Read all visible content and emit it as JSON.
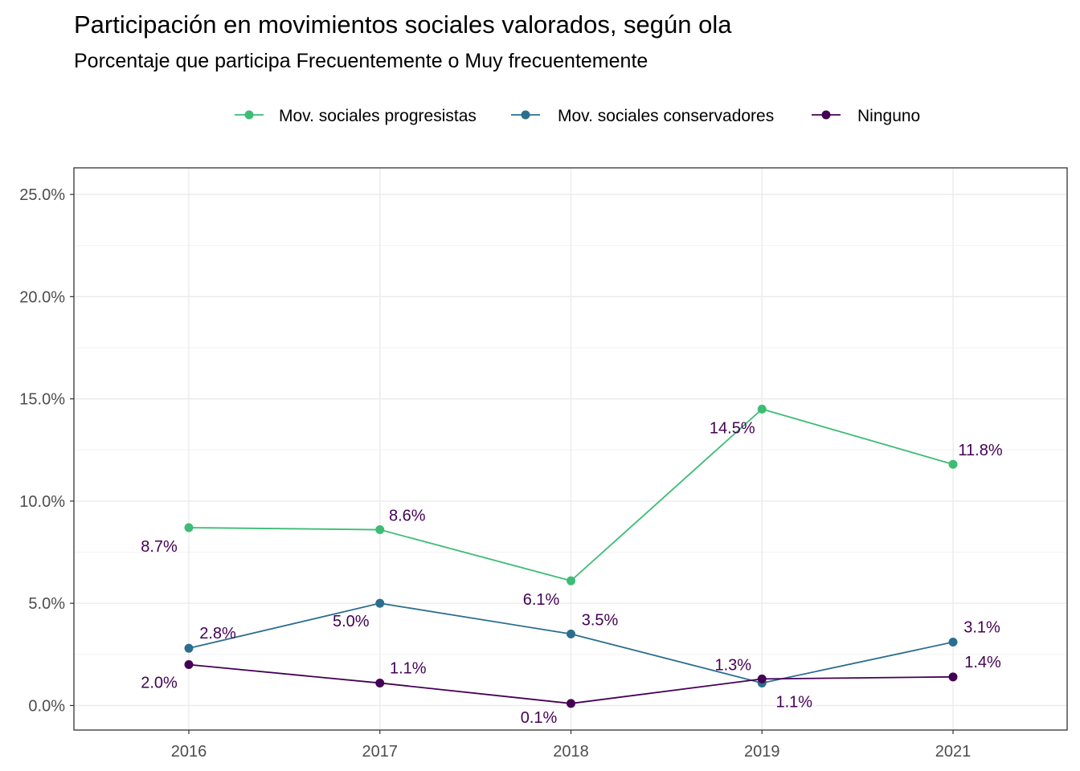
{
  "chart_data": {
    "type": "line",
    "title": "Participación en movimientos sociales valorados, según ola",
    "subtitle": "Porcentaje que participa Frecuentemente o Muy frecuentemente",
    "xlabel": "",
    "ylabel": "",
    "categories": [
      "2016",
      "2017",
      "2018",
      "2019",
      "2021"
    ],
    "y_ticks": [
      0,
      5,
      10,
      15,
      20,
      25
    ],
    "y_tick_labels": [
      "0.0%",
      "5.0%",
      "10.0%",
      "15.0%",
      "20.0%",
      "25.0%"
    ],
    "ylim": [
      -1.2,
      26.3
    ],
    "grid": true,
    "legend_position": "top",
    "label_color": "#440154",
    "series": [
      {
        "name": "Mov. sociales progresistas",
        "color": "#3DBC74",
        "values": [
          8.7,
          8.6,
          6.1,
          14.5,
          11.8
        ],
        "labels": [
          "8.7%",
          "8.6%",
          "6.1%",
          "14.5%",
          "11.8%"
        ]
      },
      {
        "name": "Mov. sociales conservadores",
        "color": "#2C6E8E",
        "values": [
          2.8,
          5.0,
          3.5,
          1.1,
          3.1
        ],
        "labels": [
          "2.8%",
          "5.0%",
          "3.5%",
          "1.1%",
          "3.1%"
        ]
      },
      {
        "name": "Ninguno",
        "color": "#440154",
        "values": [
          2.0,
          1.1,
          0.1,
          1.3,
          1.4
        ],
        "labels": [
          "2.0%",
          "1.1%",
          "0.1%",
          "1.3%",
          "1.4%"
        ]
      }
    ]
  }
}
